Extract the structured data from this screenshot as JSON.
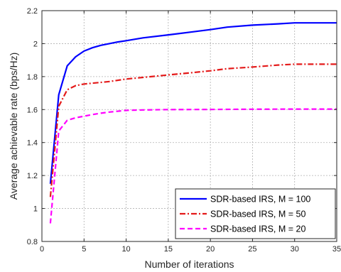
{
  "chart_data": {
    "type": "line",
    "title": "",
    "xlabel": "Number of iterations",
    "ylabel": "Average achievable rate (bps/Hz)",
    "xlim": [
      0,
      35
    ],
    "ylim": [
      0.8,
      2.2
    ],
    "xticks": [
      0,
      5,
      10,
      15,
      20,
      25,
      30,
      35
    ],
    "yticks": [
      0.8,
      1,
      1.2,
      1.4,
      1.6,
      1.8,
      2,
      2.2
    ],
    "xtick_labels": [
      "0",
      "5",
      "10",
      "15",
      "20",
      "25",
      "30",
      "35"
    ],
    "ytick_labels": [
      "0.8",
      "1",
      "1.2",
      "1.4",
      "1.6",
      "1.8",
      "2",
      "2.2"
    ],
    "grid": true,
    "legend_position": "bottom-right",
    "series": [
      {
        "name": "SDR-based IRS, M = 100",
        "color": "#0000ff",
        "style": "solid",
        "x": [
          1,
          2,
          3,
          4,
          5,
          6,
          7,
          8,
          9,
          10,
          12,
          15,
          18,
          20,
          22,
          25,
          28,
          30,
          35
        ],
        "y": [
          1.15,
          1.69,
          1.865,
          1.92,
          1.955,
          1.975,
          1.99,
          2.0,
          2.01,
          2.018,
          2.035,
          2.053,
          2.072,
          2.085,
          2.1,
          2.112,
          2.12,
          2.126,
          2.126
        ]
      },
      {
        "name": "SDR-based IRS, M = 50",
        "color": "#e41a1a",
        "style": "dashdot",
        "x": [
          1,
          2,
          3,
          4,
          5,
          6,
          7,
          8,
          10,
          12,
          15,
          18,
          20,
          22,
          25,
          28,
          30,
          35
        ],
        "y": [
          1.07,
          1.62,
          1.72,
          1.745,
          1.755,
          1.76,
          1.765,
          1.77,
          1.785,
          1.795,
          1.81,
          1.825,
          1.835,
          1.848,
          1.858,
          1.87,
          1.875,
          1.875
        ]
      },
      {
        "name": "SDR-based IRS, M = 20",
        "color": "#ff00ff",
        "style": "dashed",
        "x": [
          1,
          2,
          3,
          4,
          5,
          6,
          7,
          8,
          10,
          12,
          15,
          20,
          25,
          30,
          35
        ],
        "y": [
          0.91,
          1.47,
          1.535,
          1.55,
          1.56,
          1.57,
          1.578,
          1.585,
          1.595,
          1.598,
          1.6,
          1.601,
          1.602,
          1.603,
          1.603
        ]
      }
    ]
  }
}
